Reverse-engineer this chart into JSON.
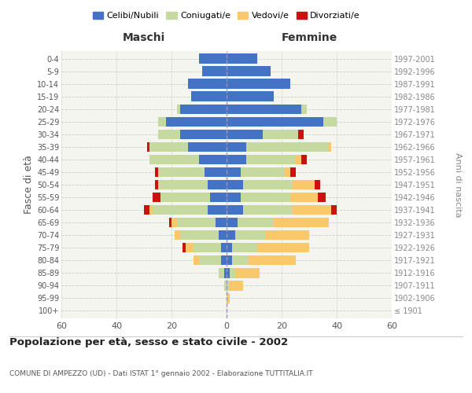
{
  "age_groups": [
    "100+",
    "95-99",
    "90-94",
    "85-89",
    "80-84",
    "75-79",
    "70-74",
    "65-69",
    "60-64",
    "55-59",
    "50-54",
    "45-49",
    "40-44",
    "35-39",
    "30-34",
    "25-29",
    "20-24",
    "15-19",
    "10-14",
    "5-9",
    "0-4"
  ],
  "birth_years": [
    "≤ 1901",
    "1902-1906",
    "1907-1911",
    "1912-1916",
    "1917-1921",
    "1922-1926",
    "1927-1931",
    "1932-1936",
    "1937-1941",
    "1942-1946",
    "1947-1951",
    "1952-1956",
    "1957-1961",
    "1962-1966",
    "1967-1971",
    "1972-1976",
    "1977-1981",
    "1982-1986",
    "1987-1991",
    "1992-1996",
    "1997-2001"
  ],
  "maschi": {
    "celibi": [
      0,
      0,
      0,
      1,
      2,
      2,
      3,
      4,
      7,
      6,
      7,
      8,
      10,
      14,
      17,
      22,
      17,
      13,
      14,
      9,
      10
    ],
    "coniugati": [
      0,
      0,
      1,
      2,
      8,
      10,
      14,
      14,
      20,
      18,
      18,
      17,
      18,
      14,
      8,
      3,
      1,
      0,
      0,
      0,
      0
    ],
    "vedovi": [
      0,
      0,
      0,
      0,
      2,
      3,
      2,
      2,
      1,
      0,
      0,
      0,
      0,
      0,
      0,
      0,
      0,
      0,
      0,
      0,
      0
    ],
    "divorziati": [
      0,
      0,
      0,
      0,
      0,
      1,
      0,
      1,
      2,
      3,
      1,
      1,
      0,
      1,
      0,
      0,
      0,
      0,
      0,
      0,
      0
    ]
  },
  "femmine": {
    "nubili": [
      0,
      0,
      0,
      1,
      2,
      2,
      3,
      4,
      6,
      5,
      6,
      5,
      7,
      7,
      13,
      35,
      27,
      17,
      23,
      16,
      11
    ],
    "coniugate": [
      0,
      0,
      1,
      2,
      6,
      9,
      11,
      13,
      18,
      18,
      18,
      16,
      18,
      30,
      13,
      5,
      2,
      0,
      0,
      0,
      0
    ],
    "vedove": [
      0,
      1,
      5,
      9,
      17,
      19,
      16,
      20,
      14,
      10,
      8,
      2,
      2,
      1,
      0,
      0,
      0,
      0,
      0,
      0,
      0
    ],
    "divorziate": [
      0,
      0,
      0,
      0,
      0,
      0,
      0,
      0,
      2,
      3,
      2,
      2,
      2,
      0,
      2,
      0,
      0,
      0,
      0,
      0,
      0
    ]
  },
  "colors": {
    "celibi": "#4472C4",
    "coniugati": "#C5D9A0",
    "vedovi": "#F9C86A",
    "divorziati": "#CC1111"
  },
  "xlim": 60,
  "title": "Popolazione per età, sesso e stato civile - 2002",
  "subtitle": "COMUNE DI AMPEZZO (UD) - Dati ISTAT 1° gennaio 2002 - Elaborazione TUTTITALIA.IT",
  "ylabel_left": "Fasce di età",
  "ylabel_right": "Anni di nascita",
  "xlabel_left": "Maschi",
  "xlabel_right": "Femmine",
  "bg_color": "#f5f5f0"
}
